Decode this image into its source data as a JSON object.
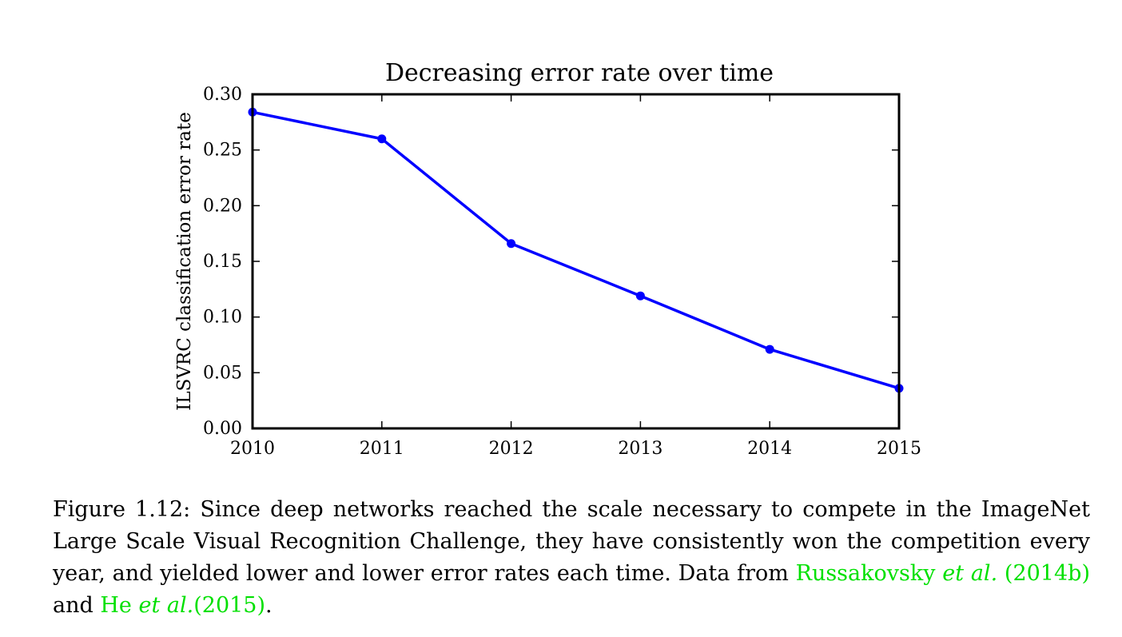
{
  "chart_data": {
    "type": "line",
    "title": "Decreasing error rate over time",
    "xlabel": "",
    "ylabel": "ILSVRC classification error rate",
    "x": [
      2010,
      2011,
      2012,
      2013,
      2014,
      2015
    ],
    "x_tick_labels": [
      "2010",
      "2011",
      "2012",
      "2013",
      "2014",
      "2015"
    ],
    "xlim": [
      2010,
      2015
    ],
    "ylim": [
      0.0,
      0.3
    ],
    "y_ticks": [
      0.0,
      0.05,
      0.1,
      0.15,
      0.2,
      0.25,
      0.3
    ],
    "y_tick_labels": [
      "0.00",
      "0.05",
      "0.10",
      "0.15",
      "0.20",
      "0.25",
      "0.30"
    ],
    "grid": false,
    "series": [
      {
        "values": [
          0.284,
          0.26,
          0.166,
          0.119,
          0.071,
          0.036
        ],
        "color": "#0000ff",
        "marker": "circle"
      }
    ]
  },
  "caption": {
    "label": "Figure 1.12:",
    "text": "Since deep networks reached the scale necessary to compete in the ImageNet Large Scale Visual Recognition Challenge, they have consistently won the competition every year, and yielded lower and lower error rates each time. Data from",
    "cite1_author": "Russakovsky",
    "cite1_etal": "et al.",
    "cite1_year": "(2014b)",
    "joiner": "and",
    "cite2_author": "He",
    "cite2_etal": "et al.",
    "cite2_year": "(2015)",
    "end": ".",
    "cite_color": "#00e000"
  }
}
